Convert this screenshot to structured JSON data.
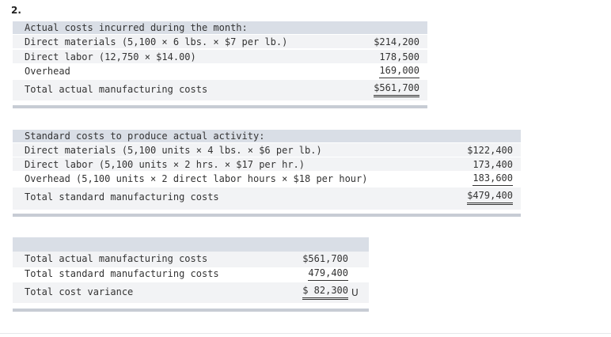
{
  "problem_number": "2.",
  "section1": {
    "heading": "Actual costs incurred during the month:",
    "rows": [
      {
        "label": "Direct materials (5,100 × 6 lbs. × $7 per lb.)",
        "amount": "$214,200"
      },
      {
        "label": "Direct labor (12,750 × $14.00)",
        "amount": "178,500"
      },
      {
        "label": "Overhead",
        "amount": "169,000"
      }
    ],
    "total": {
      "label": "Total actual manufacturing costs",
      "amount": "$561,700"
    }
  },
  "section2": {
    "heading": "Standard costs to produce actual activity:",
    "rows": [
      {
        "label": "Direct materials (5,100 units × 4 lbs. × $6 per lb.)",
        "amount": "$122,400"
      },
      {
        "label": "Direct labor (5,100 units × 2 hrs. × $17 per hr.)",
        "amount": "173,400"
      },
      {
        "label": "Overhead (5,100 units × 2 direct labor hours × $18 per hour)",
        "amount": "183,600"
      }
    ],
    "total": {
      "label": "Total standard manufacturing costs",
      "amount": "$479,400"
    }
  },
  "section3": {
    "rows": [
      {
        "label": "Total actual manufacturing costs",
        "amount": "$561,700"
      },
      {
        "label": "Total standard manufacturing costs",
        "amount": "479,400"
      }
    ],
    "total": {
      "label": "Total cost variance",
      "amount": "$ 82,300",
      "suffix": "U"
    }
  }
}
